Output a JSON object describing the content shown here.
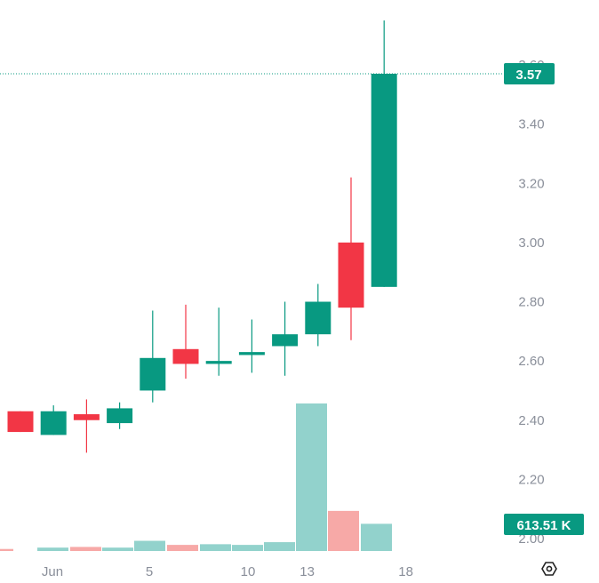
{
  "chart_data": {
    "type": "candlestick",
    "price_axis": {
      "range": [
        1.98,
        3.76
      ],
      "ticks": [
        2.0,
        2.2,
        2.4,
        2.6,
        2.8,
        3.0,
        3.2,
        3.4,
        3.6
      ],
      "tick_labels": [
        "2.00",
        "2.20",
        "2.40",
        "2.60",
        "2.80",
        "3.00",
        "3.20",
        "3.40",
        "3.60"
      ]
    },
    "time_axis": {
      "tick_labels": [
        {
          "label": "Jun",
          "day": 1
        },
        {
          "label": "5",
          "day": 5
        },
        {
          "label": "10",
          "day": 10
        },
        {
          "label": "13",
          "day": 13
        },
        {
          "label": "18",
          "day": 18
        }
      ]
    },
    "last_price": {
      "value": 3.57,
      "label": "3.57"
    },
    "last_volume": {
      "value": 613510,
      "label": "613.51 K"
    },
    "colors": {
      "up": "#089981",
      "down": "#f23645",
      "up_volume": "#92d2cc",
      "down_volume": "#f7a9a7",
      "axis_text": "#8a8f9a",
      "price_line": "#089981"
    },
    "candles": [
      {
        "day": 29,
        "open": 2.43,
        "high": 2.43,
        "low": 2.36,
        "close": 2.36
      },
      {
        "day": 30,
        "open": 2.35,
        "high": 2.45,
        "low": 2.35,
        "close": 2.43
      },
      {
        "day": 31,
        "open": 2.42,
        "high": 2.47,
        "low": 2.29,
        "close": 2.4
      },
      {
        "day": 1,
        "open": 2.39,
        "high": 2.46,
        "low": 2.37,
        "close": 2.44
      },
      {
        "day": 2,
        "open": 2.5,
        "high": 2.77,
        "low": 2.46,
        "close": 2.61
      },
      {
        "day": 3,
        "open": 2.64,
        "high": 2.79,
        "low": 2.54,
        "close": 2.59
      },
      {
        "day": 4,
        "open": 2.59,
        "high": 2.78,
        "low": 2.55,
        "close": 2.6
      },
      {
        "day": 5,
        "open": 2.62,
        "high": 2.74,
        "low": 2.56,
        "close": 2.63
      },
      {
        "day": 6,
        "open": 2.65,
        "high": 2.8,
        "low": 2.55,
        "close": 2.69
      },
      {
        "day": 7,
        "open": 2.69,
        "high": 2.86,
        "low": 2.65,
        "close": 2.8
      },
      {
        "day": 8,
        "open": 3.0,
        "high": 3.22,
        "low": 2.67,
        "close": 2.78
      },
      {
        "day": 9,
        "open": 2.85,
        "high": 3.75,
        "low": 2.85,
        "close": 3.57
      }
    ],
    "volume": [
      {
        "value": 3,
        "dir": "down"
      },
      {
        "value": 5,
        "dir": "up"
      },
      {
        "value": 6,
        "dir": "down"
      },
      {
        "value": 5,
        "dir": "up"
      },
      {
        "value": 15,
        "dir": "up"
      },
      {
        "value": 9,
        "dir": "down"
      },
      {
        "value": 10,
        "dir": "up"
      },
      {
        "value": 9,
        "dir": "up"
      },
      {
        "value": 13,
        "dir": "up"
      },
      {
        "value": 217,
        "dir": "up"
      },
      {
        "value": 59,
        "dir": "down"
      },
      {
        "value": 40,
        "dir": "up"
      }
    ]
  }
}
